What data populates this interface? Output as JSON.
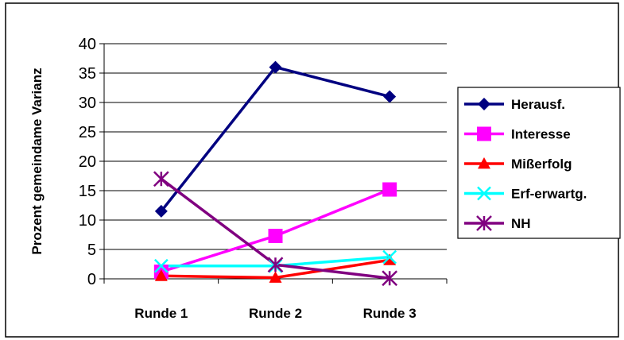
{
  "chart_data": {
    "type": "line",
    "title": "",
    "ylabel": "Prozent gemeindame Varianz",
    "xlabel": "",
    "categories": [
      "Runde 1",
      "Runde 2",
      "Runde 3"
    ],
    "ylim": [
      0,
      40
    ],
    "yticks": [
      0,
      5,
      10,
      15,
      20,
      25,
      30,
      35,
      40
    ],
    "grid": "horizontal",
    "legend": "right",
    "series": [
      {
        "name": "Herausf.",
        "values": [
          11.5,
          36,
          31
        ],
        "color": "#000080",
        "marker": "diamond"
      },
      {
        "name": "Interesse",
        "values": [
          1.2,
          7.3,
          15.2
        ],
        "color": "#FF00FF",
        "marker": "square"
      },
      {
        "name": "Mißerfolg",
        "values": [
          0.5,
          0.2,
          3.2
        ],
        "color": "#FF0000",
        "marker": "triangle"
      },
      {
        "name": "Erf-erwartg.",
        "values": [
          2.2,
          2.2,
          3.7
        ],
        "color": "#00FFFF",
        "marker": "x"
      },
      {
        "name": "NH",
        "values": [
          17,
          2.4,
          0.1
        ],
        "color": "#800080",
        "marker": "asterisk"
      }
    ]
  }
}
